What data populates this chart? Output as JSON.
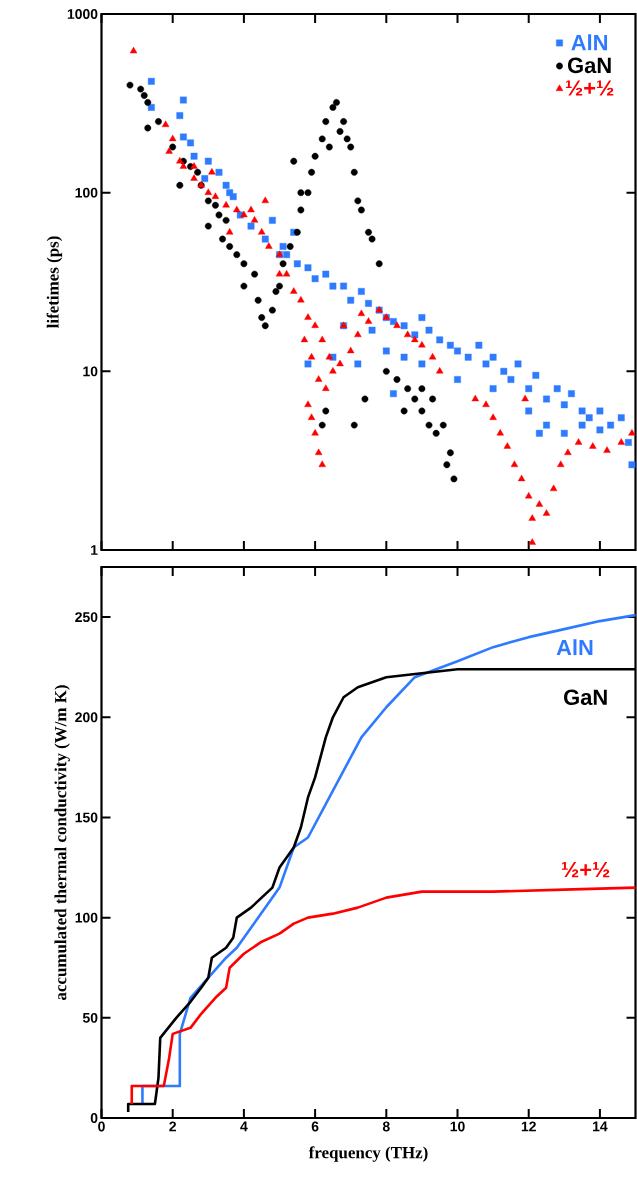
{
  "chart_data": [
    {
      "type": "scatter",
      "ylabel": "lifetimes (ps)",
      "log": "y",
      "xlim": [
        0,
        15
      ],
      "ylim": [
        1,
        1000
      ],
      "xticks": [
        0,
        2,
        4,
        6,
        8,
        10,
        12,
        14
      ],
      "yticks": [
        1,
        10,
        100,
        1000
      ],
      "tick_labels": "y",
      "legend": "top right",
      "series": [
        {
          "name": "AlN",
          "color": "#2f7bff",
          "marker": "square",
          "x": [
            1.4,
            1.4,
            2.3,
            2.2,
            2.3,
            2.5,
            2.6,
            3.3,
            3.5,
            3.6,
            3.9,
            4.2,
            4.6,
            5.0,
            5.1,
            5.4,
            5.5,
            5.8,
            6.0,
            6.3,
            6.5,
            6.8,
            7.0,
            7.3,
            7.5,
            7.8,
            8.0,
            8.2,
            8.5,
            8.8,
            9.0,
            9.2,
            9.5,
            9.8,
            10.0,
            10.3,
            10.6,
            10.8,
            11.0,
            11.3,
            11.5,
            11.7,
            12.0,
            12.2,
            12.5,
            12.8,
            13.0,
            13.2,
            13.5,
            13.7,
            14.0,
            14.3,
            14.6,
            14.8,
            14.9,
            5.8,
            6.5,
            7.2,
            8.0,
            8.5,
            9.0,
            10.0,
            11.0,
            12.0,
            12.5,
            13.0,
            14.0,
            8.2,
            5.2,
            4.8,
            3.0,
            2.9,
            3.7,
            6.8,
            7.6,
            12.3,
            13.5
          ],
          "values": [
            420,
            300,
            330,
            270,
            205,
            190,
            160,
            130,
            110,
            100,
            75,
            65,
            55,
            45,
            50,
            60,
            40,
            38,
            33,
            35,
            30,
            30,
            25,
            28,
            24,
            22,
            20,
            19,
            18,
            16,
            20,
            17,
            15,
            14,
            13,
            12,
            14,
            11,
            12,
            10,
            9,
            11,
            8,
            9.5,
            7,
            8,
            6.5,
            7.5,
            6,
            5.5,
            6,
            5,
            5.5,
            4,
            3,
            11,
            12,
            11,
            13,
            12,
            11,
            9,
            8,
            6,
            5,
            4.5,
            4.7,
            7.5,
            45,
            70,
            150,
            120,
            95,
            18,
            17,
            4.5,
            5
          ]
        },
        {
          "name": "GaN",
          "color": "#000000",
          "marker": "circle",
          "x": [
            0.8,
            1.1,
            1.2,
            1.3,
            1.6,
            1.3,
            2.0,
            2.3,
            2.5,
            2.7,
            2.8,
            3.0,
            3.2,
            3.3,
            3.5,
            3.4,
            3.6,
            3.8,
            4.0,
            4.3,
            4.0,
            4.4,
            4.5,
            4.6,
            4.8,
            5.0,
            5.1,
            5.3,
            5.5,
            5.6,
            5.8,
            5.9,
            6.0,
            6.2,
            6.3,
            6.5,
            6.6,
            6.8,
            6.9,
            7.0,
            7.1,
            7.2,
            7.3,
            7.5,
            7.6,
            6.4,
            6.7,
            5.4,
            5.6,
            7.8,
            8.0,
            8.3,
            8.6,
            8.8,
            9.0,
            9.2,
            9.4,
            9.6,
            9.8,
            9.9,
            9.7,
            9.3,
            8.5,
            9.0,
            6.2,
            6.3,
            7.1,
            7.4,
            4.9,
            3.0,
            2.2
          ],
          "values": [
            400,
            380,
            350,
            320,
            250,
            230,
            180,
            150,
            140,
            130,
            110,
            90,
            85,
            75,
            70,
            55,
            50,
            45,
            40,
            35,
            30,
            25,
            20,
            18,
            22,
            30,
            40,
            50,
            60,
            80,
            100,
            130,
            160,
            200,
            250,
            300,
            320,
            250,
            200,
            180,
            130,
            90,
            80,
            60,
            55,
            180,
            220,
            150,
            100,
            40,
            10,
            9,
            8,
            7,
            6,
            5,
            4.5,
            5,
            3.5,
            2.5,
            3,
            7,
            6,
            8,
            5,
            6,
            5,
            7,
            28,
            65,
            110
          ]
        },
        {
          "name": "½+½",
          "color": "#ff0000",
          "marker": "triangle",
          "x": [
            0.9,
            1.8,
            2.0,
            2.2,
            2.3,
            2.6,
            2.8,
            3.0,
            3.2,
            3.5,
            3.8,
            4.0,
            4.3,
            4.5,
            4.7,
            5.0,
            5.2,
            5.4,
            5.6,
            5.8,
            6.0,
            6.2,
            6.4,
            6.7,
            7.0,
            7.2,
            7.5,
            7.8,
            8.0,
            8.3,
            8.6,
            9.0,
            9.3,
            9.5,
            5.7,
            5.9,
            6.1,
            6.3,
            6.5,
            5.8,
            5.9,
            6.0,
            6.1,
            6.2,
            10.5,
            10.8,
            11.0,
            11.2,
            11.4,
            11.6,
            11.8,
            12.0,
            12.1,
            12.1,
            12.3,
            12.5,
            12.7,
            12.9,
            13.1,
            13.4,
            13.8,
            14.2,
            14.6,
            14.9,
            11.9,
            4.2,
            3.6,
            6.8,
            7.3,
            8.8,
            5.0,
            4.6,
            3.1,
            2.6,
            1.9
          ],
          "values": [
            620,
            240,
            200,
            150,
            140,
            120,
            110,
            100,
            95,
            85,
            80,
            75,
            70,
            60,
            50,
            45,
            35,
            28,
            25,
            20,
            18,
            15,
            12,
            11,
            13,
            16,
            19,
            22,
            20,
            18,
            16,
            14,
            12,
            10,
            15,
            12,
            9,
            8,
            10,
            6.5,
            5.5,
            4.5,
            3.5,
            3.0,
            7,
            6.5,
            5.5,
            4.5,
            3.8,
            3.0,
            2.5,
            2.0,
            1.5,
            1.1,
            1.8,
            1.6,
            2.2,
            3.0,
            3.5,
            4.0,
            3.8,
            3.6,
            4.0,
            4.5,
            7,
            80,
            60,
            18,
            21,
            15,
            35,
            90,
            130,
            140,
            170
          ]
        }
      ]
    },
    {
      "type": "line",
      "xlabel": "frequency (THz)",
      "ylabel": "accumulated thermal conductivity (W/m K)",
      "xlim": [
        0,
        15
      ],
      "ylim": [
        0,
        275
      ],
      "xticks": [
        0,
        2,
        4,
        6,
        8,
        10,
        12,
        14
      ],
      "yticks": [
        0,
        50,
        100,
        150,
        200,
        250
      ],
      "series": [
        {
          "name": "AlN",
          "color": "#2f7bff",
          "x": [
            1.15,
            1.15,
            2.2,
            2.2,
            2.5,
            3.5,
            3.8,
            4.4,
            5.0,
            5.4,
            5.8,
            6.4,
            6.7,
            7.3,
            8.0,
            8.8,
            10.0,
            11.0,
            12.0,
            13.0,
            14.0,
            15.0
          ],
          "values": [
            7,
            16,
            16,
            42,
            60,
            80,
            85,
            100,
            115,
            135,
            140,
            160,
            170,
            190,
            205,
            220,
            228,
            235,
            240,
            244,
            248,
            251
          ]
        },
        {
          "name": "GaN",
          "color": "#000000",
          "x": [
            0.75,
            0.75,
            1.5,
            1.6,
            1.65,
            2.1,
            2.5,
            2.8,
            3.0,
            3.1,
            3.5,
            3.7,
            3.8,
            4.2,
            4.8,
            5.0,
            5.4,
            5.6,
            5.8,
            6.0,
            6.3,
            6.5,
            6.8,
            7.2,
            8.0,
            9.0,
            10.0,
            15.0
          ],
          "values": [
            3,
            7,
            7,
            20,
            40,
            50,
            58,
            65,
            70,
            80,
            85,
            90,
            100,
            105,
            115,
            125,
            135,
            145,
            160,
            170,
            190,
            200,
            210,
            215,
            220,
            222,
            224,
            224
          ]
        },
        {
          "name": "½+½",
          "color": "#ff0000",
          "x": [
            0.85,
            0.85,
            1.75,
            1.9,
            2.0,
            2.5,
            2.8,
            3.2,
            3.5,
            3.6,
            4.0,
            4.5,
            5.0,
            5.4,
            5.8,
            6.5,
            7.2,
            8.0,
            9.0,
            11.0,
            13.0,
            15.0
          ],
          "values": [
            7,
            16,
            16,
            30,
            42,
            45,
            52,
            60,
            65,
            75,
            82,
            88,
            92,
            97,
            100,
            102,
            105,
            110,
            113,
            113,
            114,
            115
          ]
        }
      ]
    }
  ]
}
